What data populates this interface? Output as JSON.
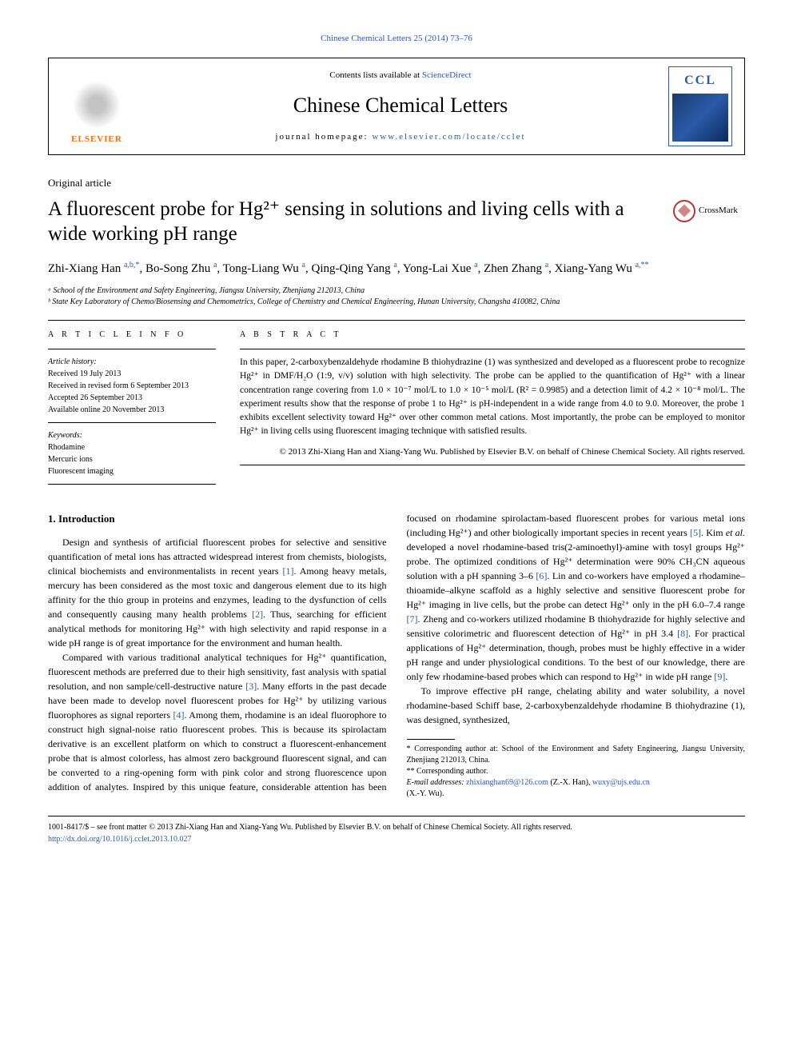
{
  "top_link": "Chinese Chemical Letters 25 (2014) 73–76",
  "header": {
    "elsevier": "ELSEVIER",
    "contents_prefix": "Contents lists available at ",
    "contents_link": "ScienceDirect",
    "journal_name": "Chinese Chemical Letters",
    "homepage_prefix": "journal homepage: ",
    "homepage_link": "www.elsevier.com/locate/cclet",
    "ccc": "CCL"
  },
  "article_type": "Original article",
  "title": "A fluorescent probe for Hg²⁺ sensing in solutions and living cells with a wide working pH range",
  "crossmark": "CrossMark",
  "authors_html": "Zhi-Xiang Han <sup>a,b,*</sup>, Bo-Song Zhu <sup>a</sup>, Tong-Liang Wu <sup>a</sup>, Qing-Qing Yang <sup>a</sup>, Yong-Lai Xue <sup>a</sup>, Zhen Zhang <sup>a</sup>, Xiang-Yang Wu <sup>a,**</sup>",
  "affiliations": [
    "ᵃ School of the Environment and Safety Engineering, Jiangsu University, Zhenjiang 212013, China",
    "ᵇ State Key Laboratory of Chemo/Biosensing and Chemometrics, College of Chemistry and Chemical Engineering, Hunan University, Changsha 410082, China"
  ],
  "info": {
    "heading": "A R T I C L E  I N F O",
    "history_label": "Article history:",
    "history": [
      "Received 19 July 2013",
      "Received in revised form 6 September 2013",
      "Accepted 26 September 2013",
      "Available online 20 November 2013"
    ],
    "keywords_label": "Keywords:",
    "keywords": [
      "Rhodamine",
      "Mercuric ions",
      "Fluorescent imaging"
    ]
  },
  "abstract": {
    "heading": "A B S T R A C T",
    "text": "In this paper, 2-carboxybenzaldehyde rhodamine B thiohydrazine (1) was synthesized and developed as a fluorescent probe to recognize Hg²⁺ in DMF/H₂O (1:9, v/v) solution with high selectivity. The probe can be applied to the quantification of Hg²⁺ with a linear concentration range covering from 1.0 × 10⁻⁷ mol/L to 1.0 × 10⁻⁵ mol/L (R² = 0.9985) and a detection limit of 4.2 × 10⁻⁸ mol/L. The experiment results show that the response of probe 1 to Hg²⁺ is pH-independent in a wide range from 4.0 to 9.0. Moreover, the probe 1 exhibits excellent selectivity toward Hg²⁺ over other common metal cations. Most importantly, the probe can be employed to monitor Hg²⁺ in living cells using fluorescent imaging technique with satisfied results.",
    "copyright": "© 2013 Zhi-Xiang Han and Xiang-Yang Wu. Published by Elsevier B.V. on behalf of Chinese Chemical Society. All rights reserved."
  },
  "body": {
    "section1_heading": "1. Introduction",
    "p1": "Design and synthesis of artificial fluorescent probes for selective and sensitive quantification of metal ions has attracted widespread interest from chemists, biologists, clinical biochemists and environmentalists in recent years [1]. Among heavy metals, mercury has been considered as the most toxic and dangerous element due to its high affinity for the thio group in proteins and enzymes, leading to the dysfunction of cells and consequently causing many health problems [2]. Thus, searching for efficient analytical methods for monitoring Hg²⁺ with high selectivity and rapid response in a wide pH range is of great importance for the environment and human health.",
    "p2": "Compared with various traditional analytical techniques for Hg²⁺ quantification, fluorescent methods are preferred due to their high sensitivity, fast analysis with spatial resolution, and non sample/cell-destructive nature [3]. Many efforts in the past decade have been made to develop novel fluorescent probes for Hg²⁺ by utilizing various fluorophores as signal reporters [4]. Among them, rhodamine is an ideal fluorophore to construct high signal-noise ratio fluorescent probes. This is because its spirolactam derivative is an excellent platform on which to construct a fluorescent-enhancement probe that is almost colorless, has almost zero background fluorescent signal, and can be converted to a ring-opening form with pink color and strong fluorescence upon addition of analytes. Inspired by this unique feature, considerable attention has been focused on rhodamine spirolactam-based fluorescent probes for various metal ions (including Hg²⁺) and other biologically important species in recent years [5]. Kim et al. developed a novel rhodamine-based tris(2-aminoethyl)-amine with tosyl groups Hg²⁺ probe. The optimized conditions of Hg²⁺ determination were 90% CH₃CN aqueous solution with a pH spanning 3–6 [6]. Lin and co-workers have employed a rhodamine–thioamide–alkyne scaffold as a highly selective and sensitive fluorescent probe for Hg²⁺ imaging in live cells, but the probe can detect Hg²⁺ only in the pH 6.0–7.4 range [7]. Zheng and co-workers utilized rhodamine B thiohydrazide for highly selective and sensitive colorimetric and fluorescent detection of Hg²⁺ in pH 3.4 [8]. For practical applications of Hg²⁺ determination, though, probes must be highly effective in a wider pH range and under physiological conditions. To the best of our knowledge, there are only few rhodamine-based probes which can respond to Hg²⁺ in wide pH range [9].",
    "p3": "To improve effective pH range, chelating ability and water solubility, a novel rhodamine-based Schiff base, 2-carboxybenzaldehyde rhodamine B thiohydrazine (1), was designed, synthesized,"
  },
  "footnotes": {
    "corr1": "* Corresponding author at: School of the Environment and Safety Engineering, Jiangsu University, Zhenjiang 212013, China.",
    "corr2": "** Corresponding author.",
    "email_label": "E-mail addresses: ",
    "email1": "zhixianghan69@126.com",
    "email1_suffix": " (Z.-X. Han), ",
    "email2": "wuxy@ujs.edu.cn",
    "email2_suffix": "(X.-Y. Wu)."
  },
  "bottom": {
    "line1": "1001-8417/$ – see front matter © 2013 Zhi-Xiang Han and Xiang-Yang Wu. Published by Elsevier B.V. on behalf of Chinese Chemical Society. All rights reserved.",
    "doi": "http://dx.doi.org/10.1016/j.cclet.2013.10.027"
  },
  "colors": {
    "link": "#2a5aa8",
    "elsevier": "#ff6b00",
    "crossmark": "#b33",
    "text": "#000000",
    "bg": "#ffffff"
  }
}
